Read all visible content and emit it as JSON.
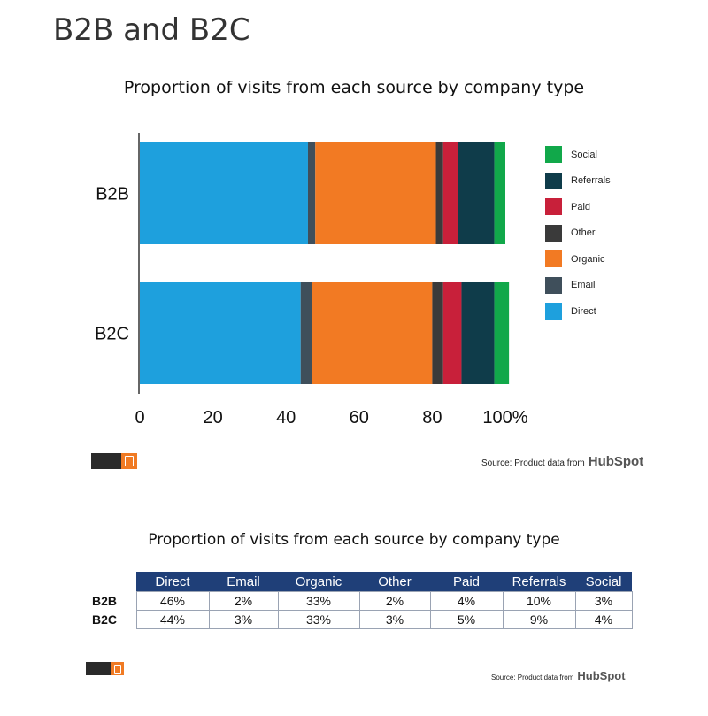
{
  "page_title": "B2B and B2C",
  "chart_title": "Proportion of visits from each source by company type",
  "chart_data": {
    "type": "bar",
    "orientation": "horizontal",
    "stacked": true,
    "categories": [
      "B2B",
      "B2C"
    ],
    "series": [
      {
        "name": "Direct",
        "values": [
          46,
          44
        ],
        "color": "#1ea0dd"
      },
      {
        "name": "Email",
        "values": [
          2,
          3
        ],
        "color": "#3f4f5b"
      },
      {
        "name": "Organic",
        "values": [
          33,
          33
        ],
        "color": "#f27a23"
      },
      {
        "name": "Other",
        "values": [
          2,
          3
        ],
        "color": "#3a3a3a"
      },
      {
        "name": "Paid",
        "values": [
          4,
          5
        ],
        "color": "#c8203a"
      },
      {
        "name": "Referrals",
        "values": [
          10,
          9
        ],
        "color": "#0f3c4a"
      },
      {
        "name": "Social",
        "values": [
          3,
          4
        ],
        "color": "#11a84a"
      }
    ],
    "x_ticks": [
      "0",
      "20",
      "40",
      "60",
      "80",
      "100%"
    ],
    "xlim": [
      0,
      100
    ],
    "legend_order": [
      "Social",
      "Referrals",
      "Paid",
      "Other",
      "Organic",
      "Email",
      "Direct"
    ],
    "legend_position": "right"
  },
  "source": {
    "prefix": "Source: Product data from",
    "brand": "HubSpot"
  },
  "table": {
    "title": "Proportion of visits from each source by company type",
    "headers": [
      "Direct",
      "Email",
      "Organic",
      "Other",
      "Paid",
      "Referrals",
      "Social"
    ],
    "rows": [
      {
        "label": "B2B",
        "cells": [
          "46%",
          "2%",
          "33%",
          "2%",
          "4%",
          "10%",
          "3%"
        ]
      },
      {
        "label": "B2C",
        "cells": [
          "44%",
          "3%",
          "33%",
          "3%",
          "5%",
          "9%",
          "4%"
        ]
      }
    ]
  }
}
